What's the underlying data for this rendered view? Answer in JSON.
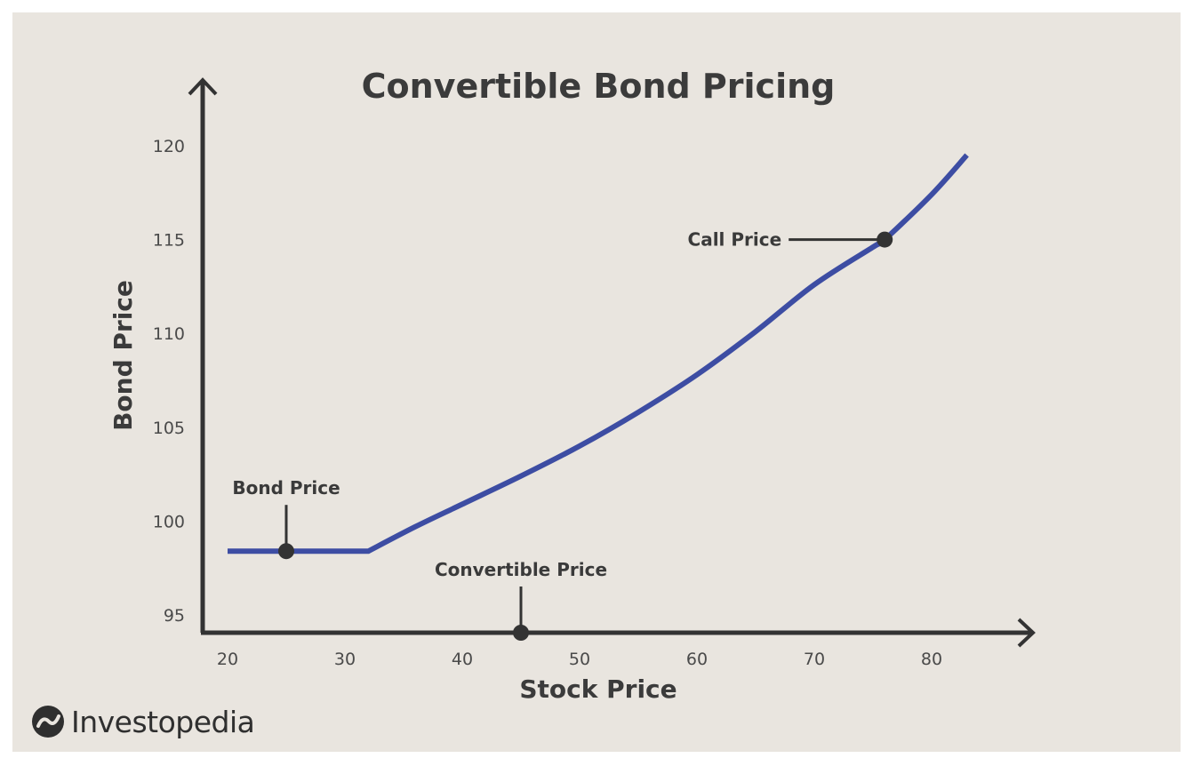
{
  "brand": {
    "name": "Investopedia",
    "logo_icon": "investopedia-logo-icon"
  },
  "chart_data": {
    "type": "line",
    "title": "Convertible Bond Pricing",
    "xlabel": "Stock Price",
    "ylabel": "Bond Price",
    "xlim": [
      19,
      88
    ],
    "ylim": [
      94.2,
      121
    ],
    "xticks": [
      20,
      30,
      40,
      50,
      60,
      70,
      80
    ],
    "yticks": [
      95,
      100,
      105,
      110,
      115,
      120
    ],
    "grid": false,
    "series": [
      {
        "color": "#3d4da3",
        "x": [
          20,
          32,
          36,
          40,
          45,
          50,
          55,
          60,
          65,
          70,
          75,
          76,
          80,
          83
        ],
        "y": [
          98.4,
          98.4,
          99.7,
          100.9,
          102.4,
          104.0,
          105.8,
          107.8,
          110.1,
          112.6,
          114.6,
          115.0,
          117.4,
          119.5
        ]
      }
    ],
    "annotations": [
      {
        "label": "Bond Price",
        "x": 25,
        "y": 98.4,
        "style": "pointer-up"
      },
      {
        "label": "Convertible Price",
        "x": 45,
        "y": 94.4,
        "style": "pointer-up"
      },
      {
        "label": "Call Price",
        "x": 76,
        "y": 115.0,
        "style": "pointer-left"
      }
    ],
    "colors": {
      "line": "#3d4da3",
      "axis": "#333333",
      "background": "#e9e5df",
      "marker": "#333333"
    }
  }
}
